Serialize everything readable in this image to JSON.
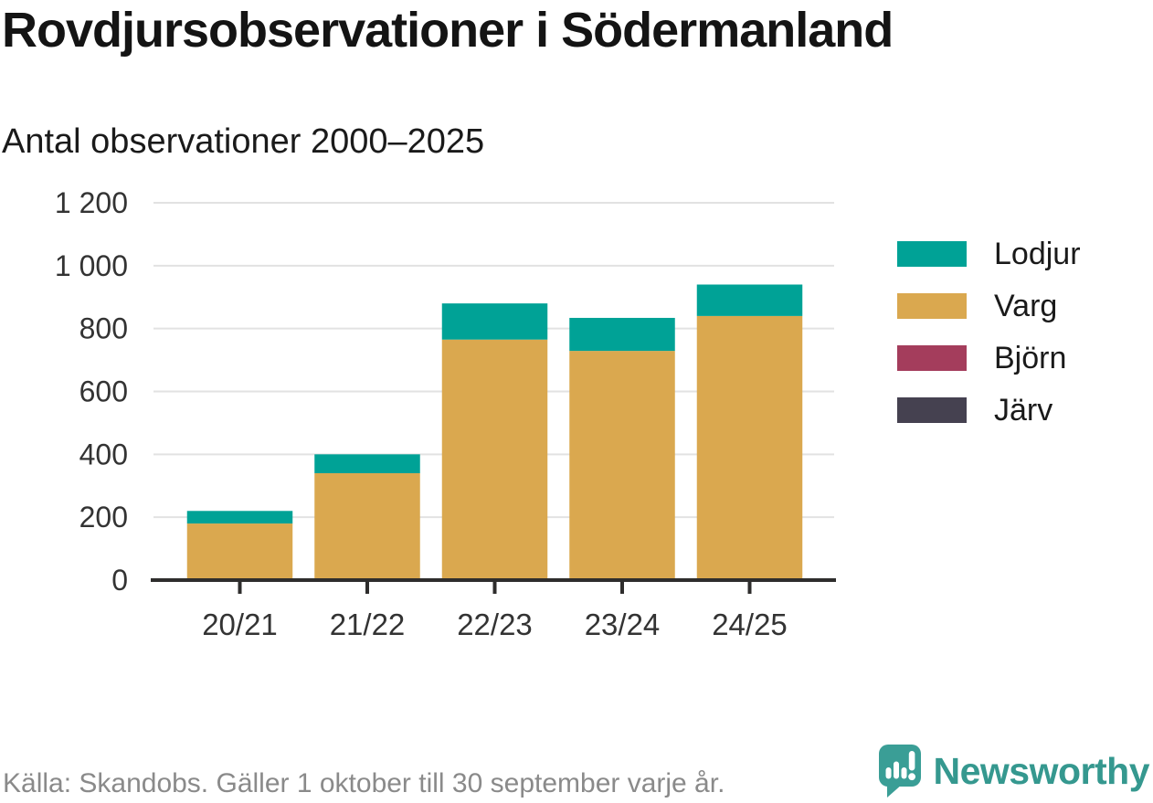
{
  "header": {
    "title": "Rovdjursobservationer i Södermanland",
    "subtitle": "Antal observationer 2000–2025"
  },
  "chart_data": {
    "type": "bar",
    "stacked": true,
    "title": "Rovdjursobservationer i Södermanland",
    "subtitle": "Antal observationer 2000–2025",
    "xlabel": "",
    "ylabel": "",
    "categories": [
      "20/21",
      "21/22",
      "22/23",
      "23/24",
      "24/25"
    ],
    "series": [
      {
        "name": "Lodjur",
        "color": "#00a296",
        "values": [
          40,
          60,
          115,
          105,
          100
        ]
      },
      {
        "name": "Varg",
        "color": "#daa84f",
        "values": [
          180,
          340,
          765,
          725,
          835
        ]
      },
      {
        "name": "Björn",
        "color": "#a43d5c",
        "values": [
          0,
          0,
          0,
          4,
          5
        ]
      },
      {
        "name": "Järv",
        "color": "#454150",
        "values": [
          0,
          0,
          0,
          0,
          0
        ]
      }
    ],
    "stack_order_bottom_to_top": [
      "Järv",
      "Björn",
      "Varg",
      "Lodjur"
    ],
    "totals": [
      220,
      400,
      880,
      834,
      940
    ],
    "ylim": [
      0,
      1200
    ],
    "ytick_step": 200,
    "ytick_labels": [
      "0",
      "200",
      "400",
      "600",
      "800",
      "1 000",
      "1 200"
    ],
    "grid": true,
    "legend_position": "right"
  },
  "footer": {
    "source": "Källa: Skandobs. Gäller 1 oktober till 30 september varje år.",
    "brand": "Newsworthy"
  },
  "colors": {
    "grid": "#e2e2e2",
    "axis": "#2e2d2c",
    "tick_text": "#333333",
    "brand_teal": "#3a9e96"
  }
}
